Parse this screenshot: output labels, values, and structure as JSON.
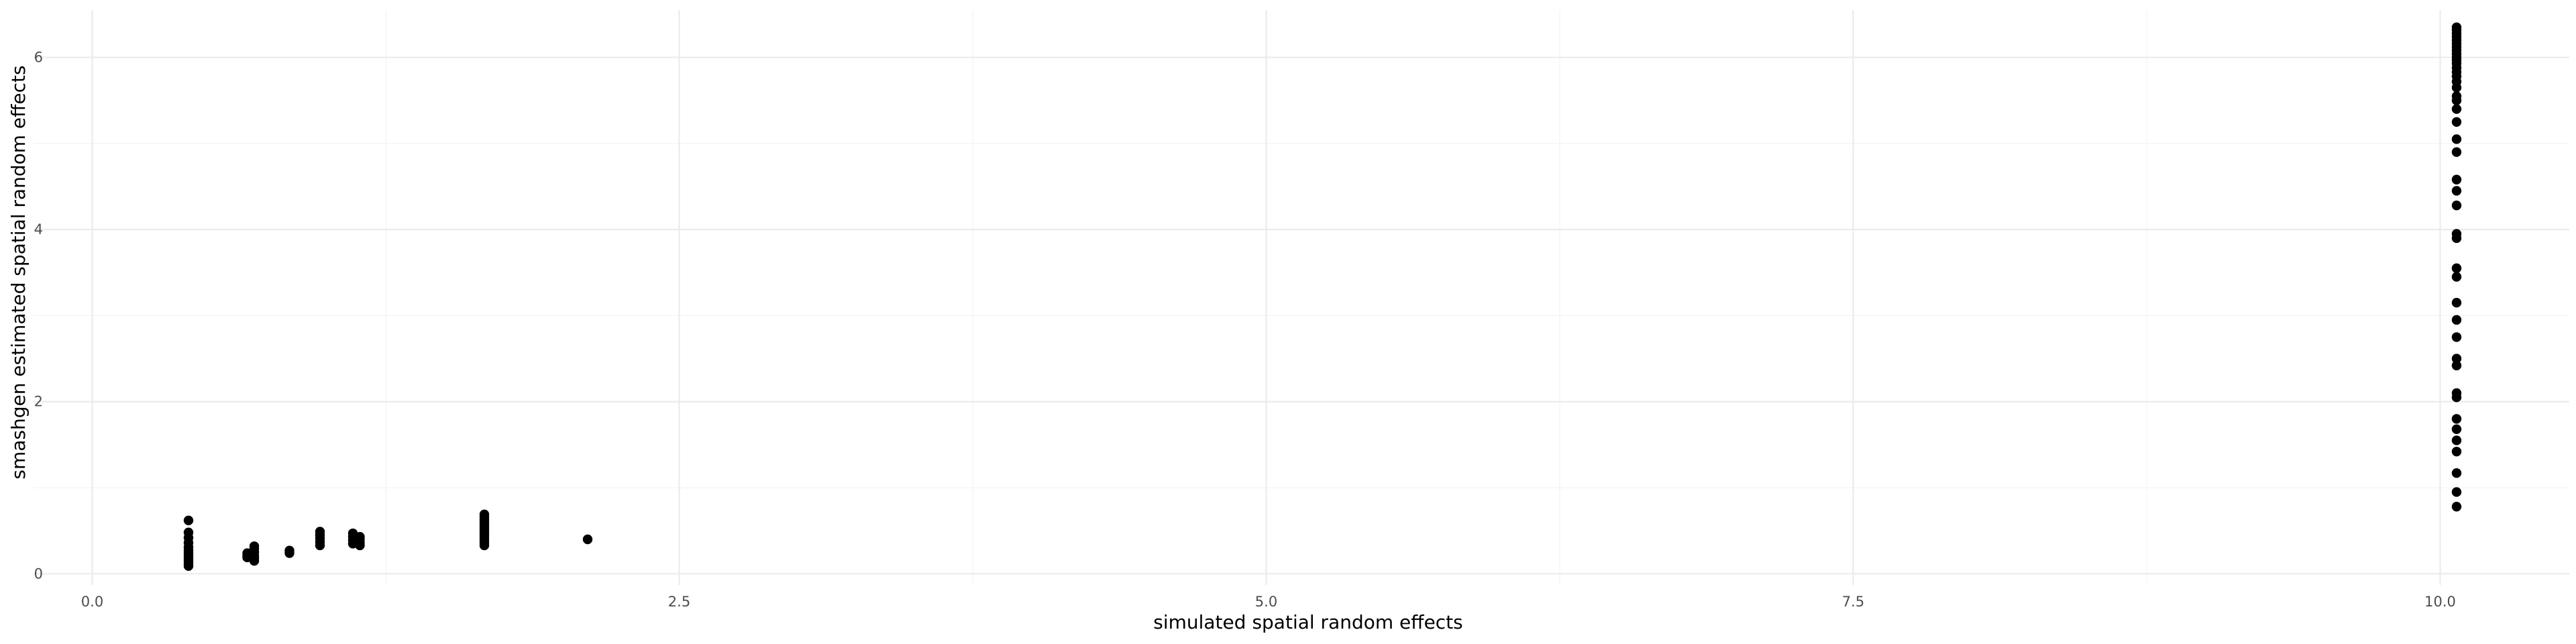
{
  "chart_data": {
    "type": "scatter",
    "title": "",
    "xlabel": "simulated spatial random effects",
    "ylabel": "smashgen estimated spatial random effects",
    "xlim": [
      -0.25,
      10.55
    ],
    "ylim": [
      -0.13,
      6.55
    ],
    "x_ticks": [
      0,
      2.5,
      5,
      7.5,
      10
    ],
    "x_tick_labels": [
      "0.0",
      "2.5",
      "5.0",
      "7.5",
      "10.0"
    ],
    "y_ticks": [
      0,
      2,
      4,
      6
    ],
    "y_tick_labels": [
      "0",
      "2",
      "4",
      "6"
    ],
    "grid": true,
    "point_color": "#000000",
    "points": [
      {
        "x": 0.41,
        "y": 0.09
      },
      {
        "x": 0.41,
        "y": 0.12
      },
      {
        "x": 0.41,
        "y": 0.15
      },
      {
        "x": 0.41,
        "y": 0.18
      },
      {
        "x": 0.41,
        "y": 0.21
      },
      {
        "x": 0.41,
        "y": 0.24
      },
      {
        "x": 0.41,
        "y": 0.27
      },
      {
        "x": 0.41,
        "y": 0.31
      },
      {
        "x": 0.41,
        "y": 0.36
      },
      {
        "x": 0.41,
        "y": 0.42
      },
      {
        "x": 0.41,
        "y": 0.48
      },
      {
        "x": 0.41,
        "y": 0.62
      },
      {
        "x": 0.66,
        "y": 0.19
      },
      {
        "x": 0.66,
        "y": 0.21
      },
      {
        "x": 0.66,
        "y": 0.24
      },
      {
        "x": 0.69,
        "y": 0.15
      },
      {
        "x": 0.69,
        "y": 0.18
      },
      {
        "x": 0.69,
        "y": 0.21
      },
      {
        "x": 0.69,
        "y": 0.25
      },
      {
        "x": 0.69,
        "y": 0.29
      },
      {
        "x": 0.69,
        "y": 0.32
      },
      {
        "x": 0.84,
        "y": 0.24
      },
      {
        "x": 0.84,
        "y": 0.27
      },
      {
        "x": 0.97,
        "y": 0.33
      },
      {
        "x": 0.97,
        "y": 0.37
      },
      {
        "x": 0.97,
        "y": 0.41
      },
      {
        "x": 0.97,
        "y": 0.45
      },
      {
        "x": 0.97,
        "y": 0.49
      },
      {
        "x": 1.11,
        "y": 0.35
      },
      {
        "x": 1.11,
        "y": 0.39
      },
      {
        "x": 1.11,
        "y": 0.43
      },
      {
        "x": 1.11,
        "y": 0.47
      },
      {
        "x": 1.14,
        "y": 0.33
      },
      {
        "x": 1.14,
        "y": 0.36
      },
      {
        "x": 1.14,
        "y": 0.4
      },
      {
        "x": 1.14,
        "y": 0.43
      },
      {
        "x": 1.67,
        "y": 0.33
      },
      {
        "x": 1.67,
        "y": 0.36
      },
      {
        "x": 1.67,
        "y": 0.39
      },
      {
        "x": 1.67,
        "y": 0.42
      },
      {
        "x": 1.67,
        "y": 0.45
      },
      {
        "x": 1.67,
        "y": 0.48
      },
      {
        "x": 1.67,
        "y": 0.51
      },
      {
        "x": 1.67,
        "y": 0.54
      },
      {
        "x": 1.67,
        "y": 0.57
      },
      {
        "x": 1.67,
        "y": 0.6
      },
      {
        "x": 1.67,
        "y": 0.63
      },
      {
        "x": 1.67,
        "y": 0.66
      },
      {
        "x": 1.67,
        "y": 0.69
      },
      {
        "x": 2.11,
        "y": 0.4
      },
      {
        "x": 10.07,
        "y": 0.78
      },
      {
        "x": 10.07,
        "y": 0.95
      },
      {
        "x": 10.07,
        "y": 1.17
      },
      {
        "x": 10.07,
        "y": 1.42
      },
      {
        "x": 10.07,
        "y": 1.55
      },
      {
        "x": 10.07,
        "y": 1.68
      },
      {
        "x": 10.07,
        "y": 1.8
      },
      {
        "x": 10.07,
        "y": 2.05
      },
      {
        "x": 10.07,
        "y": 2.1
      },
      {
        "x": 10.07,
        "y": 2.42
      },
      {
        "x": 10.07,
        "y": 2.5
      },
      {
        "x": 10.07,
        "y": 2.75
      },
      {
        "x": 10.07,
        "y": 2.95
      },
      {
        "x": 10.07,
        "y": 3.15
      },
      {
        "x": 10.07,
        "y": 3.45
      },
      {
        "x": 10.07,
        "y": 3.55
      },
      {
        "x": 10.07,
        "y": 3.9
      },
      {
        "x": 10.07,
        "y": 3.95
      },
      {
        "x": 10.07,
        "y": 4.28
      },
      {
        "x": 10.07,
        "y": 4.45
      },
      {
        "x": 10.07,
        "y": 4.58
      },
      {
        "x": 10.07,
        "y": 4.9
      },
      {
        "x": 10.07,
        "y": 5.05
      },
      {
        "x": 10.07,
        "y": 5.25
      },
      {
        "x": 10.07,
        "y": 5.4
      },
      {
        "x": 10.07,
        "y": 5.5
      },
      {
        "x": 10.07,
        "y": 5.55
      },
      {
        "x": 10.07,
        "y": 5.65
      },
      {
        "x": 10.07,
        "y": 5.72
      },
      {
        "x": 10.07,
        "y": 5.78
      },
      {
        "x": 10.07,
        "y": 5.83
      },
      {
        "x": 10.07,
        "y": 5.88
      },
      {
        "x": 10.07,
        "y": 5.93
      },
      {
        "x": 10.07,
        "y": 5.97
      },
      {
        "x": 10.07,
        "y": 6.0
      },
      {
        "x": 10.07,
        "y": 6.04
      },
      {
        "x": 10.07,
        "y": 6.08
      },
      {
        "x": 10.07,
        "y": 6.12
      },
      {
        "x": 10.07,
        "y": 6.16
      },
      {
        "x": 10.07,
        "y": 6.2
      },
      {
        "x": 10.07,
        "y": 6.24
      },
      {
        "x": 10.07,
        "y": 6.28
      },
      {
        "x": 10.07,
        "y": 6.32
      },
      {
        "x": 10.07,
        "y": 6.35
      }
    ]
  }
}
